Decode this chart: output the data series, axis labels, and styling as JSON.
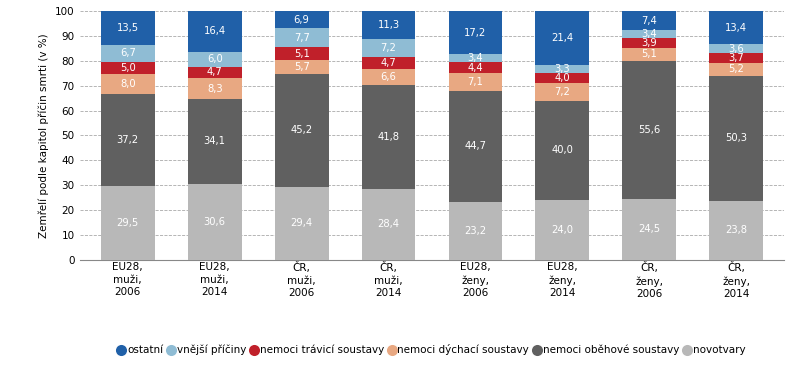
{
  "categories": [
    "EU28,\nmuži,\n2006",
    "EU28,\nmuži,\n2014",
    "ČR,\nmuži,\n2006",
    "ČR,\nmuži,\n2014",
    "EU28,\nženy,\n2006",
    "EU28,\nženy,\n2014",
    "ČR,\nženy,\n2006",
    "ČR,\nženy,\n2014"
  ],
  "series": {
    "novotvary": [
      29.5,
      30.6,
      29.4,
      28.4,
      23.2,
      24.0,
      24.5,
      23.8
    ],
    "nemoci_obehove": [
      37.2,
      34.1,
      45.2,
      41.8,
      44.7,
      40.0,
      55.6,
      50.3
    ],
    "nemoci_dychaci": [
      8.0,
      8.3,
      5.7,
      6.6,
      7.1,
      7.2,
      5.1,
      5.2
    ],
    "nemoci_travici": [
      5.0,
      4.7,
      5.1,
      4.7,
      4.4,
      4.0,
      3.9,
      3.7
    ],
    "vnejsi_priciny": [
      6.7,
      6.0,
      7.7,
      7.2,
      3.4,
      3.3,
      3.4,
      3.6
    ],
    "ostatni": [
      13.5,
      16.4,
      6.9,
      11.3,
      17.2,
      21.4,
      7.4,
      13.4
    ]
  },
  "colors": {
    "novotvary": "#b8b8b8",
    "nemoci_obehove": "#606060",
    "nemoci_dychaci": "#e8a882",
    "nemoci_travici": "#c0202a",
    "vnejsi_priciny": "#8fbcd4",
    "ostatni": "#2060a8"
  },
  "text_colors": {
    "novotvary": "white",
    "nemoci_obehove": "white",
    "nemoci_dychaci": "white",
    "nemoci_travici": "white",
    "vnejsi_priciny": "white",
    "ostatni": "white"
  },
  "legend_labels": {
    "ostatni": "ostatní",
    "vnejsi_priciny": "vnější příčiny",
    "nemoci_travici": "nemoci trávicí soustavy",
    "nemoci_dychaci": "nemoci dýchací soustavy",
    "nemoci_obehove": "nemoci oběhové soustavy",
    "novotvary": "novotvary"
  },
  "ylabel": "Zemřelí podle kapitol příčin smrti (v %)",
  "ylim": [
    0,
    100
  ],
  "bar_width": 0.62,
  "figsize": [
    8.0,
    3.71
  ],
  "dpi": 100,
  "yticks": [
    0,
    10,
    20,
    30,
    40,
    50,
    60,
    70,
    80,
    90,
    100
  ]
}
